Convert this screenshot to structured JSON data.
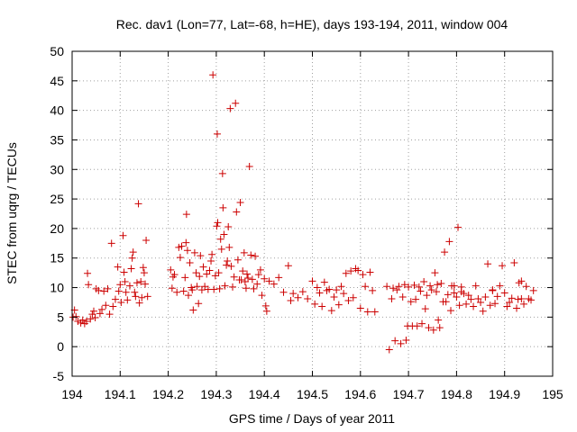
{
  "chart_data": {
    "type": "scatter",
    "title": "Rec. dav1 (Lon=77, Lat=-68, h=HE), days 193-194, 2011, window 004",
    "xlabel": "GPS time / Days of year 2011",
    "ylabel": "STEC from uqrg / TECUs",
    "xlim": [
      194,
      195
    ],
    "ylim": [
      -5,
      50
    ],
    "xticks": [
      194,
      194.1,
      194.2,
      194.3,
      194.4,
      194.5,
      194.6,
      194.7,
      194.8,
      194.9,
      195
    ],
    "xtick_labels": [
      "194",
      "194.1",
      "194.2",
      "194.3",
      "194.4",
      "194.5",
      "194.6",
      "194.7",
      "194.8",
      "194.9",
      "195"
    ],
    "yticks": [
      -5,
      0,
      5,
      10,
      15,
      20,
      25,
      30,
      35,
      40,
      45,
      50
    ],
    "ytick_labels": [
      "-5",
      "0",
      "5",
      "10",
      "15",
      "20",
      "25",
      "30",
      "35",
      "40",
      "45",
      "50"
    ],
    "grid": true,
    "marker": "plus",
    "color": "#cc0000",
    "points": [
      [
        194.002,
        5.0
      ],
      [
        194.005,
        6.2
      ],
      [
        194.008,
        5.1
      ],
      [
        194.012,
        4.3
      ],
      [
        194.018,
        4.0
      ],
      [
        194.022,
        4.5
      ],
      [
        194.026,
        3.9
      ],
      [
        194.03,
        4.3
      ],
      [
        194.034,
        10.5
      ],
      [
        194.032,
        12.4
      ],
      [
        194.038,
        4.7
      ],
      [
        194.042,
        5.5
      ],
      [
        194.045,
        6.0
      ],
      [
        194.048,
        4.9
      ],
      [
        194.05,
        9.8
      ],
      [
        194.055,
        9.5
      ],
      [
        194.058,
        5.6
      ],
      [
        194.062,
        6.3
      ],
      [
        194.066,
        9.4
      ],
      [
        194.07,
        7.0
      ],
      [
        194.074,
        9.8
      ],
      [
        194.078,
        5.5
      ],
      [
        194.082,
        17.5
      ],
      [
        194.085,
        6.8
      ],
      [
        194.09,
        8.0
      ],
      [
        194.095,
        13.5
      ],
      [
        194.097,
        9.4
      ],
      [
        194.1,
        10.5
      ],
      [
        194.102,
        7.5
      ],
      [
        194.106,
        18.8
      ],
      [
        194.108,
        12.6
      ],
      [
        194.11,
        11.0
      ],
      [
        194.112,
        9.2
      ],
      [
        194.115,
        7.9
      ],
      [
        194.12,
        10.3
      ],
      [
        194.123,
        13.2
      ],
      [
        194.125,
        15.0
      ],
      [
        194.127,
        16.0
      ],
      [
        194.13,
        9.2
      ],
      [
        194.132,
        8.5
      ],
      [
        194.135,
        10.8
      ],
      [
        194.138,
        24.2
      ],
      [
        194.14,
        7.4
      ],
      [
        194.143,
        11.0
      ],
      [
        194.145,
        8.3
      ],
      [
        194.148,
        13.4
      ],
      [
        194.15,
        12.5
      ],
      [
        194.152,
        10.6
      ],
      [
        194.154,
        18.0
      ],
      [
        194.157,
        8.5
      ],
      [
        194.205,
        13.0
      ],
      [
        194.208,
        9.9
      ],
      [
        194.21,
        11.8
      ],
      [
        194.213,
        12.2
      ],
      [
        194.218,
        9.2
      ],
      [
        194.222,
        16.8
      ],
      [
        194.225,
        15.1
      ],
      [
        194.228,
        17.0
      ],
      [
        194.232,
        9.4
      ],
      [
        194.235,
        11.7
      ],
      [
        194.237,
        17.6
      ],
      [
        194.238,
        22.4
      ],
      [
        194.24,
        16.3
      ],
      [
        194.242,
        8.7
      ],
      [
        194.245,
        14.2
      ],
      [
        194.248,
        10.0
      ],
      [
        194.25,
        9.6
      ],
      [
        194.252,
        6.2
      ],
      [
        194.255,
        15.9
      ],
      [
        194.258,
        12.5
      ],
      [
        194.26,
        10.2
      ],
      [
        194.263,
        7.3
      ],
      [
        194.265,
        11.9
      ],
      [
        194.267,
        15.4
      ],
      [
        194.27,
        9.6
      ],
      [
        194.273,
        13.5
      ],
      [
        194.276,
        10.2
      ],
      [
        194.28,
        12.3
      ],
      [
        194.283,
        9.7
      ],
      [
        194.286,
        12.9
      ],
      [
        194.289,
        14.5
      ],
      [
        194.291,
        15.6
      ],
      [
        194.293,
        46.0
      ],
      [
        194.295,
        9.7
      ],
      [
        194.298,
        12.0
      ],
      [
        194.301,
        20.4
      ],
      [
        194.302,
        36.0
      ],
      [
        194.303,
        21.0
      ],
      [
        194.305,
        12.5
      ],
      [
        194.307,
        9.8
      ],
      [
        194.309,
        18.2
      ],
      [
        194.311,
        16.5
      ],
      [
        194.313,
        29.3
      ],
      [
        194.314,
        23.5
      ],
      [
        194.316,
        19.0
      ],
      [
        194.318,
        10.3
      ],
      [
        194.321,
        13.8
      ],
      [
        194.323,
        14.5
      ],
      [
        194.325,
        20.3
      ],
      [
        194.327,
        16.8
      ],
      [
        194.329,
        40.3
      ],
      [
        194.331,
        13.6
      ],
      [
        194.334,
        10.1
      ],
      [
        194.337,
        11.8
      ],
      [
        194.34,
        41.2
      ],
      [
        194.342,
        22.8
      ],
      [
        194.345,
        14.7
      ],
      [
        194.348,
        11.3
      ],
      [
        194.35,
        24.4
      ],
      [
        194.352,
        11.3
      ],
      [
        194.355,
        12.8
      ],
      [
        194.358,
        15.9
      ],
      [
        194.36,
        11.0
      ],
      [
        194.362,
        9.9
      ],
      [
        194.364,
        12.3
      ],
      [
        194.366,
        11.6
      ],
      [
        194.369,
        30.5
      ],
      [
        194.372,
        15.5
      ],
      [
        194.375,
        11.4
      ],
      [
        194.378,
        9.8
      ],
      [
        194.381,
        15.3
      ],
      [
        194.385,
        10.6
      ],
      [
        194.388,
        12.2
      ],
      [
        194.392,
        13.0
      ],
      [
        194.395,
        8.7
      ],
      [
        194.4,
        11.5
      ],
      [
        194.403,
        6.9
      ],
      [
        194.405,
        6.0
      ],
      [
        194.41,
        11.1
      ],
      [
        194.42,
        10.6
      ],
      [
        194.43,
        11.7
      ],
      [
        194.44,
        9.2
      ],
      [
        194.45,
        13.7
      ],
      [
        194.455,
        7.8
      ],
      [
        194.46,
        9.0
      ],
      [
        194.47,
        8.3
      ],
      [
        194.48,
        9.3
      ],
      [
        194.49,
        8.1
      ],
      [
        194.5,
        11.1
      ],
      [
        194.505,
        7.2
      ],
      [
        194.51,
        10.0
      ],
      [
        194.515,
        9.1
      ],
      [
        194.52,
        6.8
      ],
      [
        194.525,
        10.9
      ],
      [
        194.53,
        9.5
      ],
      [
        194.535,
        9.7
      ],
      [
        194.54,
        6.1
      ],
      [
        194.545,
        8.4
      ],
      [
        194.55,
        9.6
      ],
      [
        194.555,
        7.1
      ],
      [
        194.56,
        10.2
      ],
      [
        194.565,
        9.0
      ],
      [
        194.57,
        12.4
      ],
      [
        194.575,
        7.8
      ],
      [
        194.58,
        12.8
      ],
      [
        194.585,
        8.3
      ],
      [
        194.59,
        13.2
      ],
      [
        194.595,
        12.9
      ],
      [
        194.6,
        6.5
      ],
      [
        194.605,
        12.2
      ],
      [
        194.61,
        10.2
      ],
      [
        194.615,
        5.9
      ],
      [
        194.62,
        12.6
      ],
      [
        194.625,
        9.5
      ],
      [
        194.63,
        5.9
      ],
      [
        194.655,
        10.2
      ],
      [
        194.66,
        -0.5
      ],
      [
        194.665,
        8.1
      ],
      [
        194.668,
        9.9
      ],
      [
        194.672,
        1.0
      ],
      [
        194.676,
        9.6
      ],
      [
        194.68,
        10.2
      ],
      [
        194.684,
        0.5
      ],
      [
        194.688,
        8.4
      ],
      [
        194.692,
        10.5
      ],
      [
        194.695,
        1.1
      ],
      [
        194.698,
        3.5
      ],
      [
        194.7,
        10.1
      ],
      [
        194.705,
        7.6
      ],
      [
        194.708,
        3.5
      ],
      [
        194.712,
        10.4
      ],
      [
        194.715,
        8.0
      ],
      [
        194.718,
        3.5
      ],
      [
        194.722,
        10.1
      ],
      [
        194.725,
        9.4
      ],
      [
        194.728,
        3.9
      ],
      [
        194.732,
        11.0
      ],
      [
        194.735,
        6.4
      ],
      [
        194.738,
        8.7
      ],
      [
        194.742,
        3.2
      ],
      [
        194.745,
        10.3
      ],
      [
        194.748,
        9.6
      ],
      [
        194.752,
        2.8
      ],
      [
        194.755,
        12.5
      ],
      [
        194.758,
        9.3
      ],
      [
        194.762,
        4.5
      ],
      [
        194.765,
        3.2
      ],
      [
        194.768,
        10.7
      ],
      [
        194.772,
        7.6
      ],
      [
        194.775,
        16.0
      ],
      [
        194.778,
        7.6
      ],
      [
        194.782,
        8.8
      ],
      [
        194.785,
        17.8
      ],
      [
        194.788,
        6.1
      ],
      [
        194.79,
        10.3
      ],
      [
        194.795,
        9.1
      ],
      [
        194.8,
        8.4
      ],
      [
        194.803,
        20.2
      ],
      [
        194.806,
        7.0
      ],
      [
        194.81,
        10.1
      ],
      [
        194.815,
        9.0
      ],
      [
        194.82,
        7.2
      ],
      [
        194.825,
        8.7
      ],
      [
        194.83,
        8.0
      ],
      [
        194.835,
        6.8
      ],
      [
        194.84,
        10.3
      ],
      [
        194.845,
        8.1
      ],
      [
        194.85,
        7.5
      ],
      [
        194.855,
        6.0
      ],
      [
        194.86,
        8.4
      ],
      [
        194.865,
        14.0
      ],
      [
        194.87,
        7.0
      ],
      [
        194.875,
        9.6
      ],
      [
        194.88,
        7.3
      ],
      [
        194.885,
        8.5
      ],
      [
        194.89,
        10.3
      ],
      [
        194.895,
        13.7
      ],
      [
        194.9,
        9.1
      ],
      [
        194.905,
        6.8
      ],
      [
        194.91,
        7.5
      ],
      [
        194.915,
        8.2
      ],
      [
        194.92,
        14.2
      ],
      [
        194.925,
        6.5
      ],
      [
        194.93,
        10.8
      ],
      [
        194.935,
        8.1
      ],
      [
        194.94,
        7.2
      ],
      [
        194.945,
        10.2
      ],
      [
        194.95,
        8.1
      ],
      [
        194.955,
        7.9
      ],
      [
        194.96,
        9.5
      ],
      [
        194.935,
        11.1
      ],
      [
        194.928,
        8.0
      ],
      [
        194.875,
        9.5
      ],
      [
        194.81,
        9.3
      ],
      [
        194.795,
        10.3
      ],
      [
        194.76,
        10.5
      ]
    ]
  }
}
